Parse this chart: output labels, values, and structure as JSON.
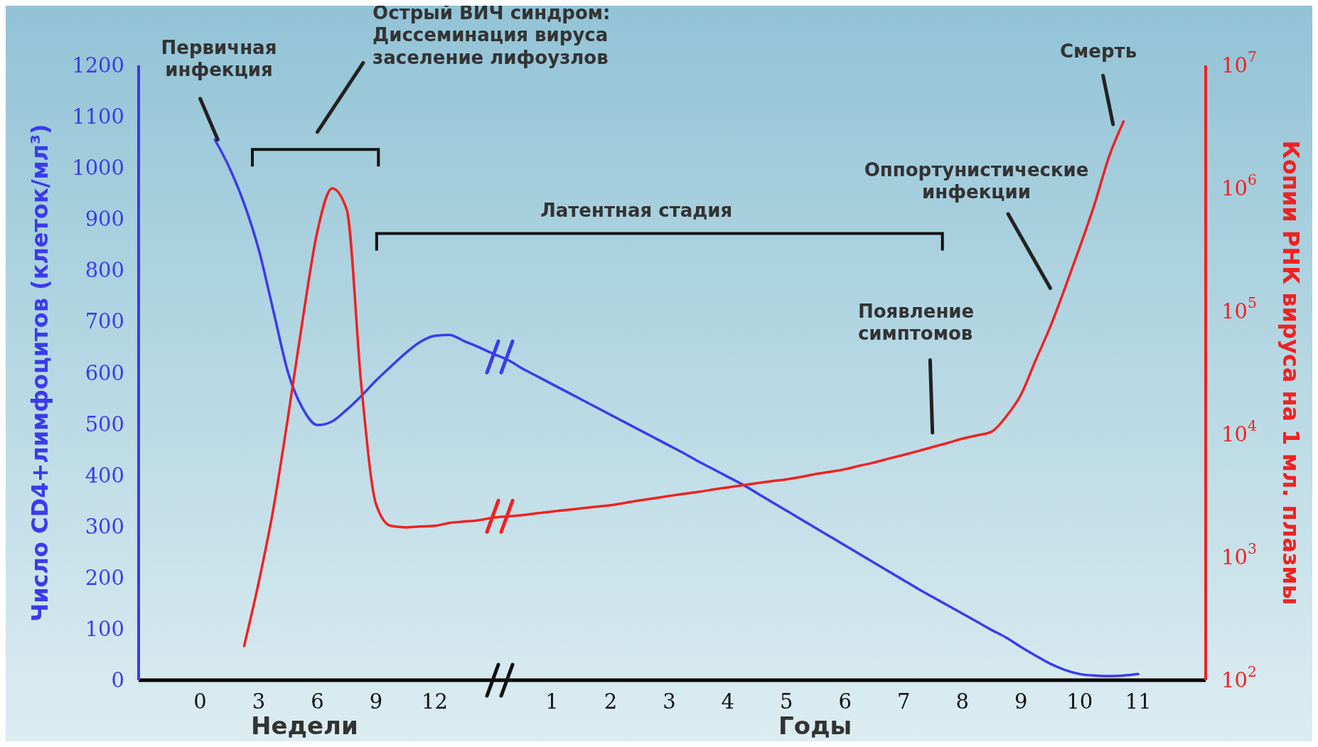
{
  "chart_data": {
    "type": "line",
    "ylabel": "Число CD4+лимфоцитов (клеток/мл³)",
    "y2label": "Копии РНК вируса на 1 мл. плазмы",
    "categories": [
      "0",
      null,
      null,
      null,
      "3",
      null,
      null,
      null,
      "6",
      null,
      null,
      null,
      "9",
      null,
      null,
      null,
      "12",
      null,
      null,
      null,
      null,
      null,
      null,
      null,
      "1",
      null,
      null,
      null,
      "2",
      null,
      null,
      null,
      "3",
      null,
      null,
      null,
      "4",
      null,
      null,
      null,
      "5",
      null,
      null,
      null,
      "6",
      null,
      null,
      null,
      "7",
      null,
      null,
      null,
      "8",
      null,
      null,
      null,
      "9",
      null,
      null,
      null,
      "10",
      null,
      null,
      null,
      "11",
      null
    ],
    "ylim": [
      0,
      1200
    ],
    "yticks": [
      0,
      100,
      200,
      300,
      400,
      500,
      600,
      700,
      800,
      900,
      1000,
      1100,
      1200
    ],
    "y2lim": [
      100,
      10000000
    ],
    "y2ticks": [
      {
        "value": 100,
        "label": "10$^{2}$"
      },
      {
        "value": 1000,
        "label": "10$^{3}$"
      },
      {
        "value": 10000,
        "label": "10$^{4}$"
      },
      {
        "value": 100000,
        "label": "10$^{5}$"
      },
      {
        "value": 1000000,
        "label": "10$^{6}$"
      },
      {
        "value": 10000000,
        "label": "10$^{7}$"
      }
    ],
    "log": "y2",
    "marker": "none",
    "line_style": "solid",
    "series": [
      {
        "color": "#3b3bea",
        "values": [
          null,
          1055,
          1000,
          930,
          840,
          720,
          600,
          530,
          498,
          505,
          528,
          555,
          585,
          612,
          638,
          660,
          672,
          674,
          662,
          650,
          637,
          625,
          608,
          593,
          578,
          563,
          548,
          533,
          518,
          503,
          488,
          473,
          458,
          443,
          427,
          412,
          397,
          382,
          365,
          348,
          331,
          314,
          297,
          280,
          263,
          246,
          229,
          212,
          195,
          178,
          162,
          146,
          130,
          114,
          98,
          83,
          65,
          48,
          32,
          20,
          12,
          9,
          8,
          9,
          12,
          null
        ]
      },
      {
        "color": "#ee2222",
        "axis": "y2",
        "values": [
          null,
          null,
          null,
          190,
          630,
          2500,
          14000,
          87000,
          450000,
          1000000,
          670000,
          24500,
          2700,
          1800,
          1750,
          1780,
          1800,
          1900,
          1950,
          2000,
          2100,
          2150,
          2200,
          2280,
          2350,
          2420,
          2500,
          2570,
          2650,
          2770,
          2900,
          3020,
          3150,
          3280,
          3400,
          3550,
          3700,
          3850,
          4000,
          4150,
          4300,
          4500,
          4750,
          4950,
          5200,
          5550,
          5900,
          6350,
          6800,
          7300,
          7900,
          8500,
          9200,
          9800,
          10500,
          14000,
          21000,
          40000,
          75000,
          155000,
          330000,
          730000,
          1800000,
          3500000,
          null,
          null
        ]
      }
    ],
    "annotations": [
      {
        "text": "Первичная\nинфекция",
        "y": 1055
      },
      "Острый ВИЧ синдром:\nДиссеминация вируса\nзаселение лифоузлов",
      "Латентная стадия",
      "Оппортунистические\nинфекции",
      "Появление\nсимптомов",
      "Смерть",
      "Недели",
      "Годы"
    ]
  }
}
